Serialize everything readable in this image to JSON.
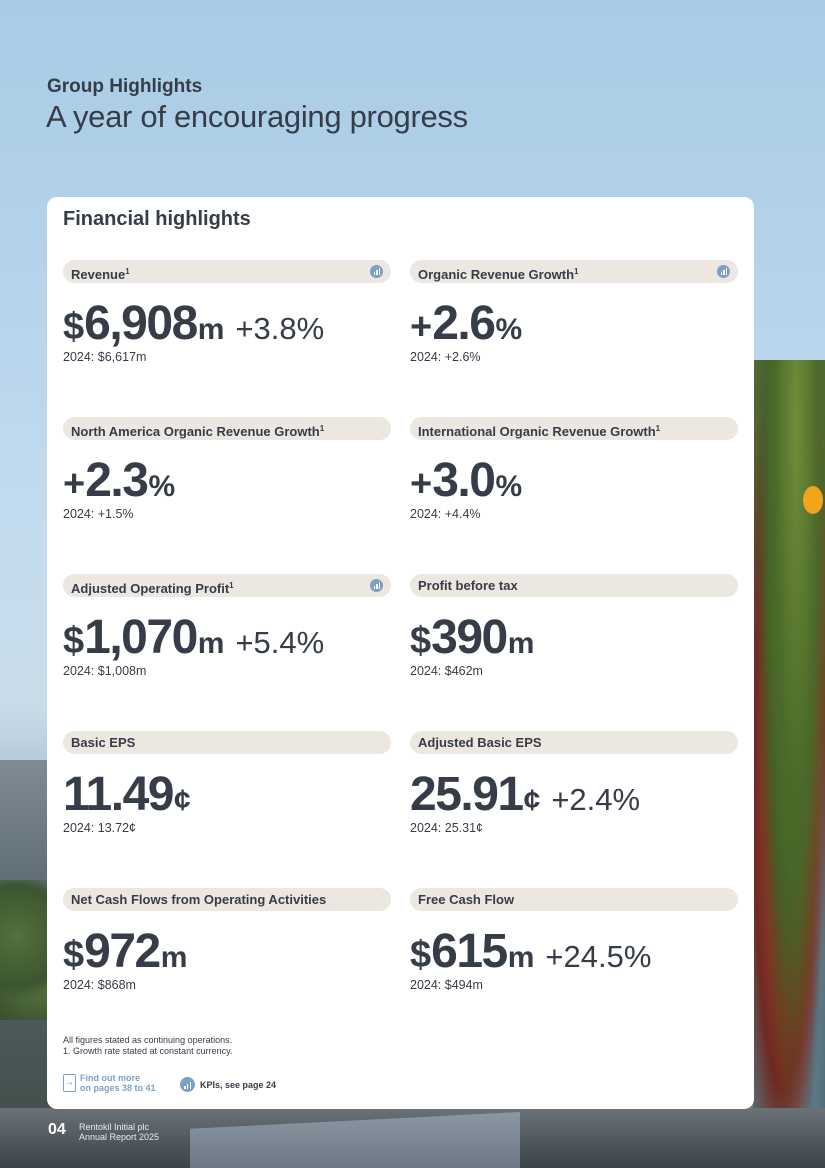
{
  "header": {
    "eyebrow": "Group Highlights",
    "headline": "A year of encouraging progress"
  },
  "card": {
    "title": "Financial highlights",
    "metrics": [
      {
        "label": "Revenue",
        "footnote": "1",
        "kpi": true,
        "prefix": "$",
        "value": "6,908",
        "unit": "m",
        "change": "+3.8%",
        "prior": "2024: $6,617m"
      },
      {
        "label": "Organic Revenue Growth",
        "footnote": "1",
        "kpi": true,
        "prefix": "+",
        "value": "2.6",
        "unit": "%",
        "change": "",
        "prior": "2024: +2.6%"
      },
      {
        "label": "North America Organic Revenue Growth",
        "footnote": "1",
        "kpi": false,
        "prefix": "+",
        "value": "2.3",
        "unit": "%",
        "change": "",
        "prior": "2024: +1.5%"
      },
      {
        "label": "International Organic Revenue Growth",
        "footnote": "1",
        "kpi": false,
        "prefix": "+",
        "value": "3.0",
        "unit": "%",
        "change": "",
        "prior": "2024: +4.4%"
      },
      {
        "label": "Adjusted Operating Profit",
        "footnote": "1",
        "kpi": true,
        "prefix": "$",
        "value": "1,070",
        "unit": "m",
        "change": "+5.4%",
        "prior": "2024: $1,008m"
      },
      {
        "label": "Profit before tax",
        "footnote": "",
        "kpi": false,
        "prefix": "$",
        "value": "390",
        "unit": "m",
        "change": "",
        "prior": "2024: $462m"
      },
      {
        "label": "Basic EPS",
        "footnote": "",
        "kpi": false,
        "prefix": "",
        "value": "11.49",
        "unit": "¢",
        "change": "",
        "prior": "2024: 13.72¢"
      },
      {
        "label": "Adjusted Basic EPS",
        "footnote": "",
        "kpi": false,
        "prefix": "",
        "value": "25.91",
        "unit": "¢",
        "change": "+2.4%",
        "prior": "2024: 25.31¢"
      },
      {
        "label": "Net Cash Flows from Operating Activities",
        "footnote": "",
        "kpi": false,
        "prefix": "$",
        "value": "972",
        "unit": "m",
        "change": "",
        "prior": "2024: $868m"
      },
      {
        "label": "Free Cash Flow",
        "footnote": "",
        "kpi": false,
        "prefix": "$",
        "value": "615",
        "unit": "m",
        "change": "+24.5%",
        "prior": "2024: $494m"
      }
    ],
    "notes": {
      "line1": "All figures stated as continuing operations.",
      "line2": "1.  Growth rate stated at constant currency."
    },
    "links": {
      "find_out_more_line1": "Find out more",
      "find_out_more_line2": "on pages 38 to 41",
      "kpi_link": "KPIs, see page 24"
    }
  },
  "footer": {
    "page_number": "04",
    "company": "Rentokil Initial plc",
    "report": "Annual Report 2025"
  },
  "colors": {
    "text": "#363d48",
    "pill_bg": "#ece7e0",
    "accent_blue": "#7e9fc7",
    "card_bg": "#ffffff"
  },
  "icons": {
    "kpi": "bar-chart-circle-icon",
    "page_link": "document-arrow-icon"
  }
}
